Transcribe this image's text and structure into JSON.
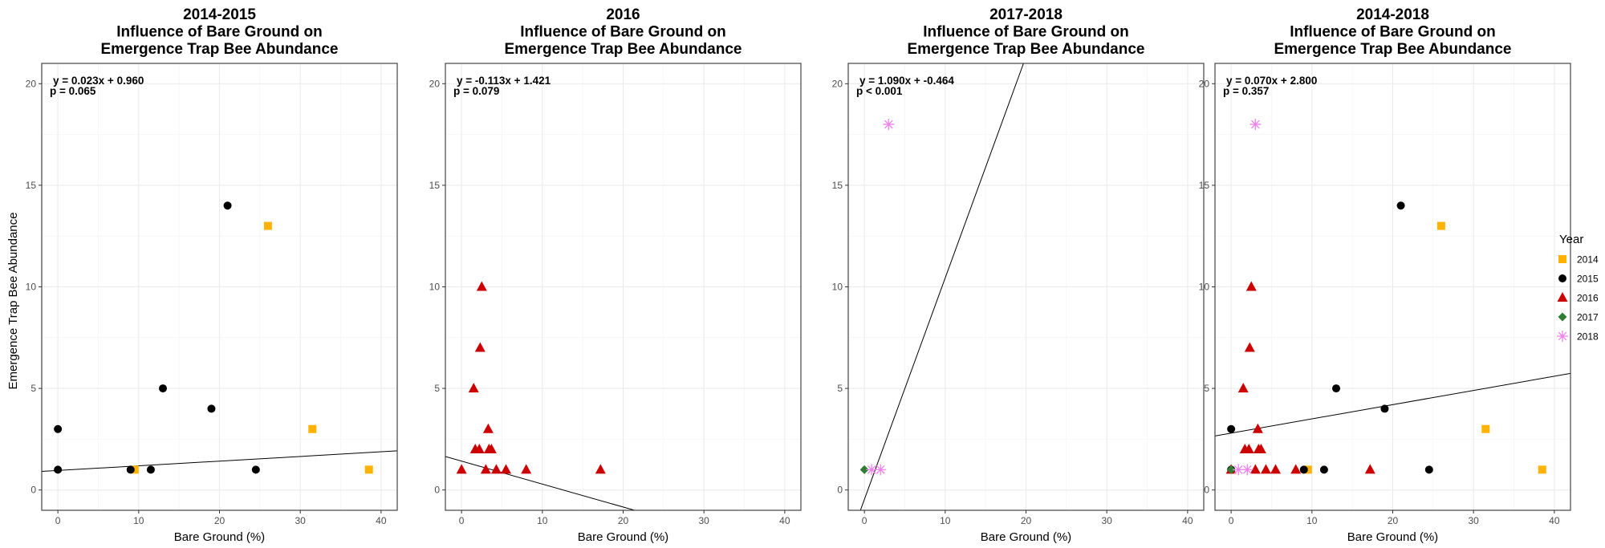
{
  "chart_data": [
    {
      "type": "scatter",
      "title": [
        "2014-2015",
        "Influence of Bare Ground on",
        "Emergence Trap Bee Abundance"
      ],
      "xlabel": "Bare Ground (%)",
      "ylabel": "Emergence Trap Bee Abundance",
      "xlim": [
        -2,
        42
      ],
      "ylim": [
        -1,
        21
      ],
      "xticks": [
        0,
        10,
        20,
        30,
        40
      ],
      "yticks": [
        0,
        5,
        10,
        15,
        20
      ],
      "grid": true,
      "annotation": [
        "y = 0.023x + 0.960",
        "p = 0.065"
      ],
      "fit": {
        "slope": 0.023,
        "intercept": 0.96
      },
      "series": [
        {
          "name": "2014",
          "points": [
            [
              9.5,
              1
            ],
            [
              26,
              13
            ],
            [
              31.5,
              3
            ],
            [
              38.5,
              1
            ]
          ]
        },
        {
          "name": "2015",
          "points": [
            [
              0,
              3
            ],
            [
              0,
              1
            ],
            [
              9,
              1
            ],
            [
              11.5,
              1
            ],
            [
              13,
              5
            ],
            [
              19,
              4
            ],
            [
              21,
              14
            ],
            [
              24.5,
              1
            ]
          ]
        }
      ]
    },
    {
      "type": "scatter",
      "title": [
        "2016",
        "Influence of Bare Ground on",
        "Emergence Trap Bee Abundance"
      ],
      "xlabel": "Bare Ground (%)",
      "ylabel": "",
      "xlim": [
        -2,
        42
      ],
      "ylim": [
        -1,
        21
      ],
      "xticks": [
        0,
        10,
        20,
        30,
        40
      ],
      "yticks": [
        0,
        5,
        10,
        15,
        20
      ],
      "grid": true,
      "annotation": [
        "y = -0.113x + 1.421",
        "p = 0.079"
      ],
      "fit": {
        "slope": -0.113,
        "intercept": 1.421
      },
      "series": [
        {
          "name": "2016",
          "points": [
            [
              0,
              1
            ],
            [
              1.5,
              5
            ],
            [
              1.7,
              2
            ],
            [
              2.2,
              2
            ],
            [
              2.3,
              7
            ],
            [
              2.5,
              10
            ],
            [
              3,
              1
            ],
            [
              3.3,
              3
            ],
            [
              3.4,
              2
            ],
            [
              3.7,
              2
            ],
            [
              4.3,
              1
            ],
            [
              5.5,
              1
            ],
            [
              8,
              1
            ],
            [
              17.2,
              1
            ]
          ]
        }
      ]
    },
    {
      "type": "scatter",
      "title": [
        "2017-2018",
        "Influence of Bare Ground on",
        "Emergence Trap Bee Abundance"
      ],
      "xlabel": "Bare Ground (%)",
      "ylabel": "",
      "xlim": [
        -2,
        42
      ],
      "ylim": [
        -1,
        21
      ],
      "xticks": [
        0,
        10,
        20,
        30,
        40
      ],
      "yticks": [
        0,
        5,
        10,
        15,
        20
      ],
      "grid": true,
      "annotation": [
        "y = 1.090x + -0.464",
        "p < 0.001"
      ],
      "fit": {
        "slope": 1.09,
        "intercept": -0.464
      },
      "series": [
        {
          "name": "2017",
          "points": [
            [
              0,
              1
            ]
          ]
        },
        {
          "name": "2018",
          "points": [
            [
              0.9,
              1
            ],
            [
              2,
              1
            ],
            [
              3,
              18
            ]
          ]
        }
      ]
    },
    {
      "type": "scatter",
      "title": [
        "2014-2018",
        "Influence of Bare Ground on",
        "Emergence Trap Bee Abundance"
      ],
      "xlabel": "Bare Ground (%)",
      "ylabel": "",
      "xlim": [
        -2,
        42
      ],
      "ylim": [
        -1,
        21
      ],
      "xticks": [
        0,
        10,
        20,
        30,
        40
      ],
      "yticks": [
        0,
        5,
        10,
        15,
        20
      ],
      "grid": true,
      "annotation": [
        "y = 0.070x + 2.800",
        "p = 0.357"
      ],
      "fit": {
        "slope": 0.07,
        "intercept": 2.8
      },
      "series": [
        {
          "name": "2014",
          "points": [
            [
              9.5,
              1
            ],
            [
              26,
              13
            ],
            [
              31.5,
              3
            ],
            [
              38.5,
              1
            ]
          ]
        },
        {
          "name": "2015",
          "points": [
            [
              0,
              3
            ],
            [
              0,
              1
            ],
            [
              9,
              1
            ],
            [
              11.5,
              1
            ],
            [
              13,
              5
            ],
            [
              19,
              4
            ],
            [
              21,
              14
            ],
            [
              24.5,
              1
            ]
          ]
        },
        {
          "name": "2016",
          "points": [
            [
              0,
              1
            ],
            [
              1.5,
              5
            ],
            [
              1.7,
              2
            ],
            [
              2.2,
              2
            ],
            [
              2.3,
              7
            ],
            [
              2.5,
              10
            ],
            [
              3,
              1
            ],
            [
              3.3,
              3
            ],
            [
              3.4,
              2
            ],
            [
              3.7,
              2
            ],
            [
              4.3,
              1
            ],
            [
              5.5,
              1
            ],
            [
              8,
              1
            ],
            [
              17.2,
              1
            ]
          ]
        },
        {
          "name": "2017",
          "points": [
            [
              0,
              1
            ]
          ]
        },
        {
          "name": "2018",
          "points": [
            [
              0.9,
              1
            ],
            [
              2,
              1
            ],
            [
              3,
              18
            ]
          ]
        }
      ]
    }
  ],
  "legend": {
    "title": "Year",
    "placement": "right",
    "items": [
      {
        "label": "2014",
        "color": "#FFB300",
        "shape": "square"
      },
      {
        "label": "2015",
        "color": "#000000",
        "shape": "circle"
      },
      {
        "label": "2016",
        "color": "#CC0000",
        "shape": "triangle"
      },
      {
        "label": "2017",
        "color": "#2E7D32",
        "shape": "diamond"
      },
      {
        "label": "2018",
        "color": "#EE82EE",
        "shape": "asterisk"
      }
    ]
  }
}
